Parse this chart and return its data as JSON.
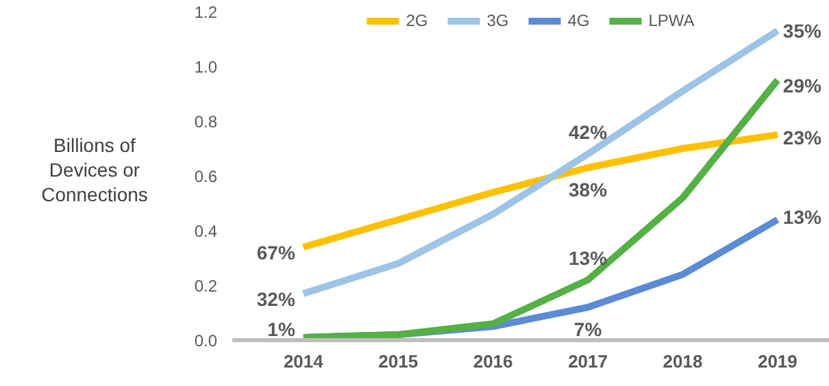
{
  "chart_data": {
    "type": "line",
    "ylabel": "Billions of Devices or Connections",
    "categories": [
      "2014",
      "2015",
      "2016",
      "2017",
      "2018",
      "2019"
    ],
    "series": [
      {
        "name": "2G",
        "color": "#ffc000",
        "values": [
          0.34,
          0.44,
          0.54,
          0.63,
          0.7,
          0.75
        ]
      },
      {
        "name": "3G",
        "color": "#9dc3e6",
        "values": [
          0.17,
          0.28,
          0.46,
          0.68,
          0.91,
          1.13
        ]
      },
      {
        "name": "4G",
        "color": "#5b8bd5",
        "values": [
          0.01,
          0.02,
          0.05,
          0.12,
          0.24,
          0.44
        ]
      },
      {
        "name": "LPWA",
        "color": "#55b046",
        "values": [
          0.01,
          0.02,
          0.06,
          0.22,
          0.52,
          0.95
        ]
      }
    ],
    "ylim": [
      0,
      1.2
    ],
    "yticks": [
      {
        "value": 0,
        "label": "0.0"
      },
      0.2,
      0.4,
      0.6,
      0.8,
      {
        "value": 1,
        "label": "1.0"
      },
      1.2
    ],
    "legend": "top",
    "marker": "none",
    "line_style": "solid",
    "grid": false,
    "annotations": [
      {
        "text": "67%",
        "x": "2014",
        "y": 0.32
      },
      {
        "text": "32%",
        "x": "2014",
        "y": 0.15
      },
      {
        "text": "1%",
        "x": "2014",
        "y": 0.04
      },
      {
        "text": "42%",
        "x": "2017",
        "y": 0.68
      },
      {
        "text": "38%",
        "x": "2017",
        "y": 0.63
      },
      {
        "text": "13%",
        "x": "2017",
        "y": 0.22
      },
      {
        "text": "7%",
        "x": "2017",
        "y": 0.12
      },
      {
        "text": "35%",
        "x": "2019",
        "y": 1.13
      },
      {
        "text": "29%",
        "x": "2019",
        "y": 0.93
      },
      {
        "text": "23%",
        "x": "2019",
        "y": 0.74
      },
      {
        "text": "13%",
        "x": "2019",
        "y": 0.45
      }
    ]
  }
}
